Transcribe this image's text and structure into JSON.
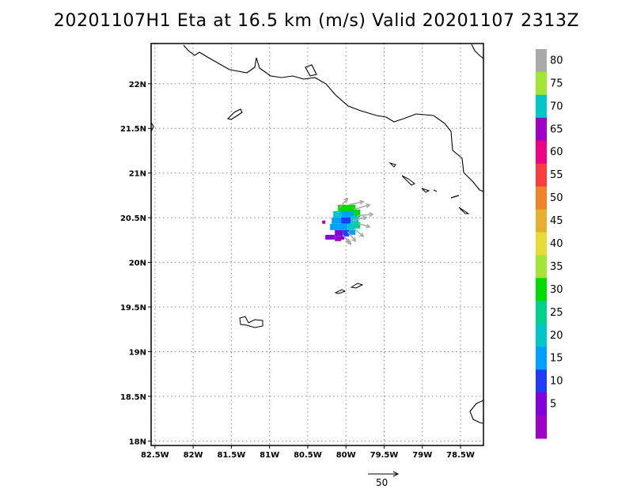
{
  "title": "20201107H1 Eta at 16.5 km (m/s) Valid 20201107 2313Z",
  "map": {
    "lon_range": [
      -82.55,
      -78.2
    ],
    "lat_range": [
      17.95,
      22.45
    ],
    "lon_ticks": [
      -82.5,
      -82,
      -81.5,
      -81,
      -80.5,
      -80,
      -79.5,
      -79,
      -78.5
    ],
    "lon_tick_labels": [
      "82.5W",
      "82W",
      "81.5W",
      "81W",
      "80.5W",
      "80W",
      "79.5W",
      "79W",
      "78.5W"
    ],
    "lat_ticks": [
      18,
      18.5,
      19,
      19.5,
      20,
      20.5,
      21,
      21.5,
      22
    ],
    "lat_tick_labels": [
      "18N",
      "18.5N",
      "19N",
      "19.5N",
      "20N",
      "20.5N",
      "21N",
      "21.5N",
      "22N"
    ],
    "grid": "dotted",
    "storm_center": {
      "lon": -80.0,
      "lat": 20.45
    }
  },
  "legend": {
    "colors": [
      "#a000c8",
      "#8200dc",
      "#1e3cff",
      "#00a0ff",
      "#00c8c8",
      "#00d28c",
      "#00dc00",
      "#a0e632",
      "#e6dc32",
      "#e6af2d",
      "#f08228",
      "#fa3c3c",
      "#f00082",
      "#a000c8",
      "#00c8c8",
      "#a0e632",
      "#aaaaaa"
    ],
    "labels": [
      "5",
      "10",
      "15",
      "20",
      "25",
      "30",
      "35",
      "40",
      "45",
      "50",
      "55",
      "60",
      "65",
      "70",
      "75",
      "80"
    ]
  },
  "reference_vector": {
    "label": "50"
  }
}
